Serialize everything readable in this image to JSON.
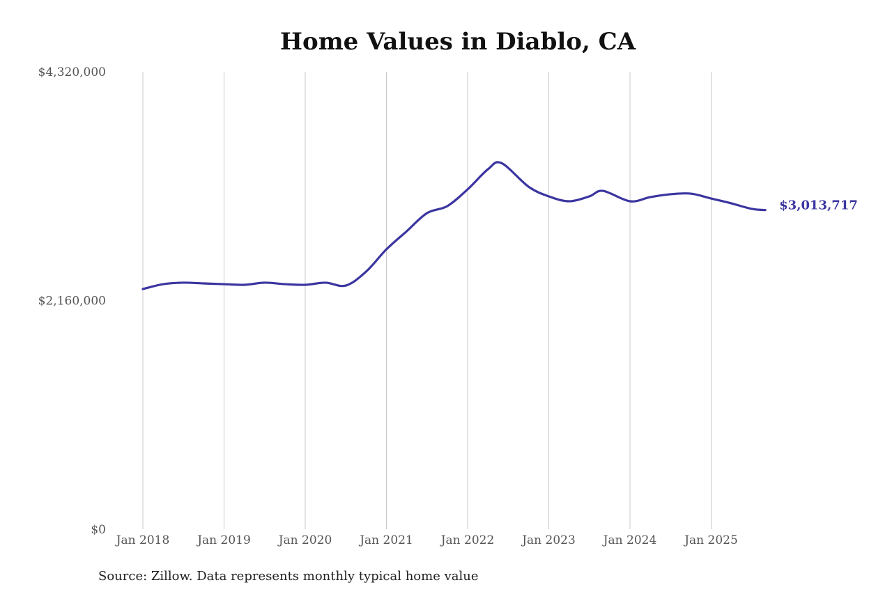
{
  "chart_data": {
    "type": "line",
    "title": "Home Values in Diablo, CA",
    "source": "Source: Zillow. Data represents monthly typical home value",
    "xlabel": "",
    "ylabel": "",
    "ylim": [
      0,
      4320000
    ],
    "yticks": [
      0,
      2160000,
      4320000
    ],
    "ytick_labels": [
      "$0",
      "$2,160,000",
      "$4,320,000"
    ],
    "xticks": [
      "2018-01",
      "2019-01",
      "2020-01",
      "2021-01",
      "2022-01",
      "2023-01",
      "2024-01",
      "2025-01"
    ],
    "xtick_labels": [
      "Jan 2018",
      "Jan 2019",
      "Jan 2020",
      "Jan 2021",
      "Jan 2022",
      "Jan 2023",
      "Jan 2024",
      "Jan 2025"
    ],
    "grid": "vertical",
    "line_color": "#3b35a0",
    "end_label": "$3,013,717",
    "series": [
      {
        "x": [
          "2018-01",
          "2018-04",
          "2018-07",
          "2018-10",
          "2019-01",
          "2019-04",
          "2019-07",
          "2019-10",
          "2020-01",
          "2020-04",
          "2020-07",
          "2020-10",
          "2021-01",
          "2021-04",
          "2021-07",
          "2021-10",
          "2022-01",
          "2022-04",
          "2022-06",
          "2022-10",
          "2023-01",
          "2023-04",
          "2023-07",
          "2023-09",
          "2024-01",
          "2024-04",
          "2024-07",
          "2024-10",
          "2025-01",
          "2025-04",
          "2025-07",
          "2025-09"
        ],
        "values": [
          2268000,
          2314000,
          2328000,
          2321000,
          2314000,
          2308000,
          2328000,
          2314000,
          2308000,
          2328000,
          2301000,
          2433000,
          2643000,
          2814000,
          2985000,
          3051000,
          3209000,
          3399000,
          3458000,
          3235000,
          3143000,
          3097000,
          3143000,
          3195000,
          3097000,
          3136000,
          3163000,
          3169000,
          3123000,
          3077000,
          3025000,
          3013717
        ]
      }
    ]
  }
}
